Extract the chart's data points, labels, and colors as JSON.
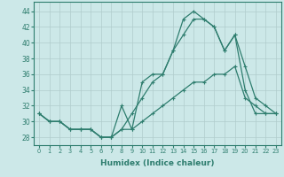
{
  "xlabel": "Humidex (Indice chaleur)",
  "x_ticks": [
    0,
    1,
    2,
    3,
    4,
    5,
    6,
    7,
    8,
    9,
    10,
    11,
    12,
    13,
    14,
    15,
    16,
    17,
    18,
    19,
    20,
    21,
    22,
    23
  ],
  "y_ticks": [
    28,
    30,
    32,
    34,
    36,
    38,
    40,
    42,
    44
  ],
  "ylim": [
    27.0,
    45.2
  ],
  "xlim": [
    -0.5,
    23.5
  ],
  "bg_color": "#cce8e8",
  "grid_color": "#b0cccc",
  "line_color": "#2e7d6e",
  "series": [
    {
      "x": [
        0,
        1,
        2,
        3,
        4,
        5,
        6,
        7,
        8,
        9,
        10,
        11,
        12,
        13,
        14,
        15,
        16,
        17,
        18,
        19,
        20,
        21,
        22,
        23
      ],
      "y": [
        31,
        30,
        30,
        29,
        29,
        29,
        28,
        28,
        29,
        29,
        30,
        31,
        32,
        33,
        34,
        35,
        35,
        36,
        36,
        37,
        33,
        32,
        31,
        31
      ]
    },
    {
      "x": [
        0,
        1,
        2,
        3,
        4,
        5,
        6,
        7,
        8,
        9,
        10,
        11,
        12,
        13,
        14,
        15,
        16,
        17,
        18,
        19,
        20,
        21,
        22,
        23
      ],
      "y": [
        31,
        30,
        30,
        29,
        29,
        29,
        28,
        28,
        29,
        31,
        33,
        35,
        36,
        39,
        41,
        43,
        43,
        42,
        39,
        41,
        34,
        31,
        31,
        31
      ]
    },
    {
      "x": [
        0,
        1,
        2,
        3,
        4,
        5,
        6,
        7,
        8,
        9,
        10,
        11,
        12,
        13,
        14,
        15,
        16,
        17,
        18,
        19,
        20,
        21,
        22,
        23
      ],
      "y": [
        31,
        30,
        30,
        29,
        29,
        29,
        28,
        28,
        32,
        29,
        35,
        36,
        36,
        39,
        43,
        44,
        43,
        42,
        39,
        41,
        37,
        33,
        32,
        31
      ]
    }
  ]
}
